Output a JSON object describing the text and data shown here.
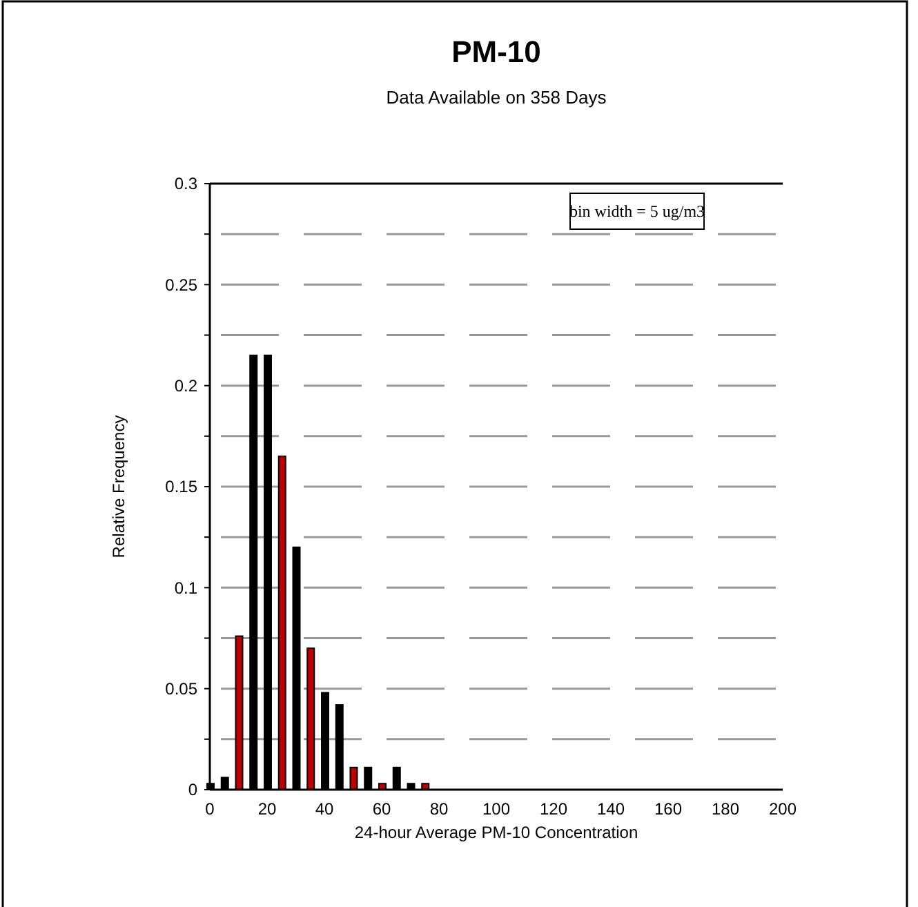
{
  "chart_data": {
    "type": "bar",
    "title": "PM-10",
    "subtitle": "Data Available on 358 Days",
    "xlabel": "24-hour Average PM-10 Concentration",
    "ylabel": "Relative Frequency",
    "annotations": [
      "bin width = 5 ug/m3"
    ],
    "x": [
      0,
      5,
      10,
      15,
      20,
      25,
      30,
      35,
      40,
      45,
      50,
      55,
      60,
      65,
      70,
      75
    ],
    "values": [
      0.003,
      0.006,
      0.076,
      0.215,
      0.215,
      0.165,
      0.12,
      0.07,
      0.048,
      0.042,
      0.011,
      0.011,
      0.003,
      0.011,
      0.003,
      0.003
    ],
    "colors": [
      "#000000",
      "#000000",
      "#c00000",
      "#000000",
      "#000000",
      "#c00000",
      "#000000",
      "#c00000",
      "#000000",
      "#000000",
      "#c00000",
      "#000000",
      "#c00000",
      "#000000",
      "#000000",
      "#c00000"
    ],
    "xlim": [
      0,
      200
    ],
    "xticks": [
      0,
      20,
      40,
      60,
      80,
      100,
      120,
      140,
      160,
      180,
      200
    ],
    "ylim": [
      0,
      0.3
    ],
    "yticks": [
      0,
      {
        "value": 0.025,
        "label": null
      },
      0.05,
      {
        "value": 0.075,
        "label": null
      },
      0.1,
      {
        "value": 0.125,
        "label": null
      },
      0.15,
      {
        "value": 0.175,
        "label": null
      },
      0.2,
      {
        "value": 0.225,
        "label": null
      },
      0.25,
      {
        "value": 0.275,
        "label": null
      },
      0.3
    ],
    "grid": "y"
  }
}
